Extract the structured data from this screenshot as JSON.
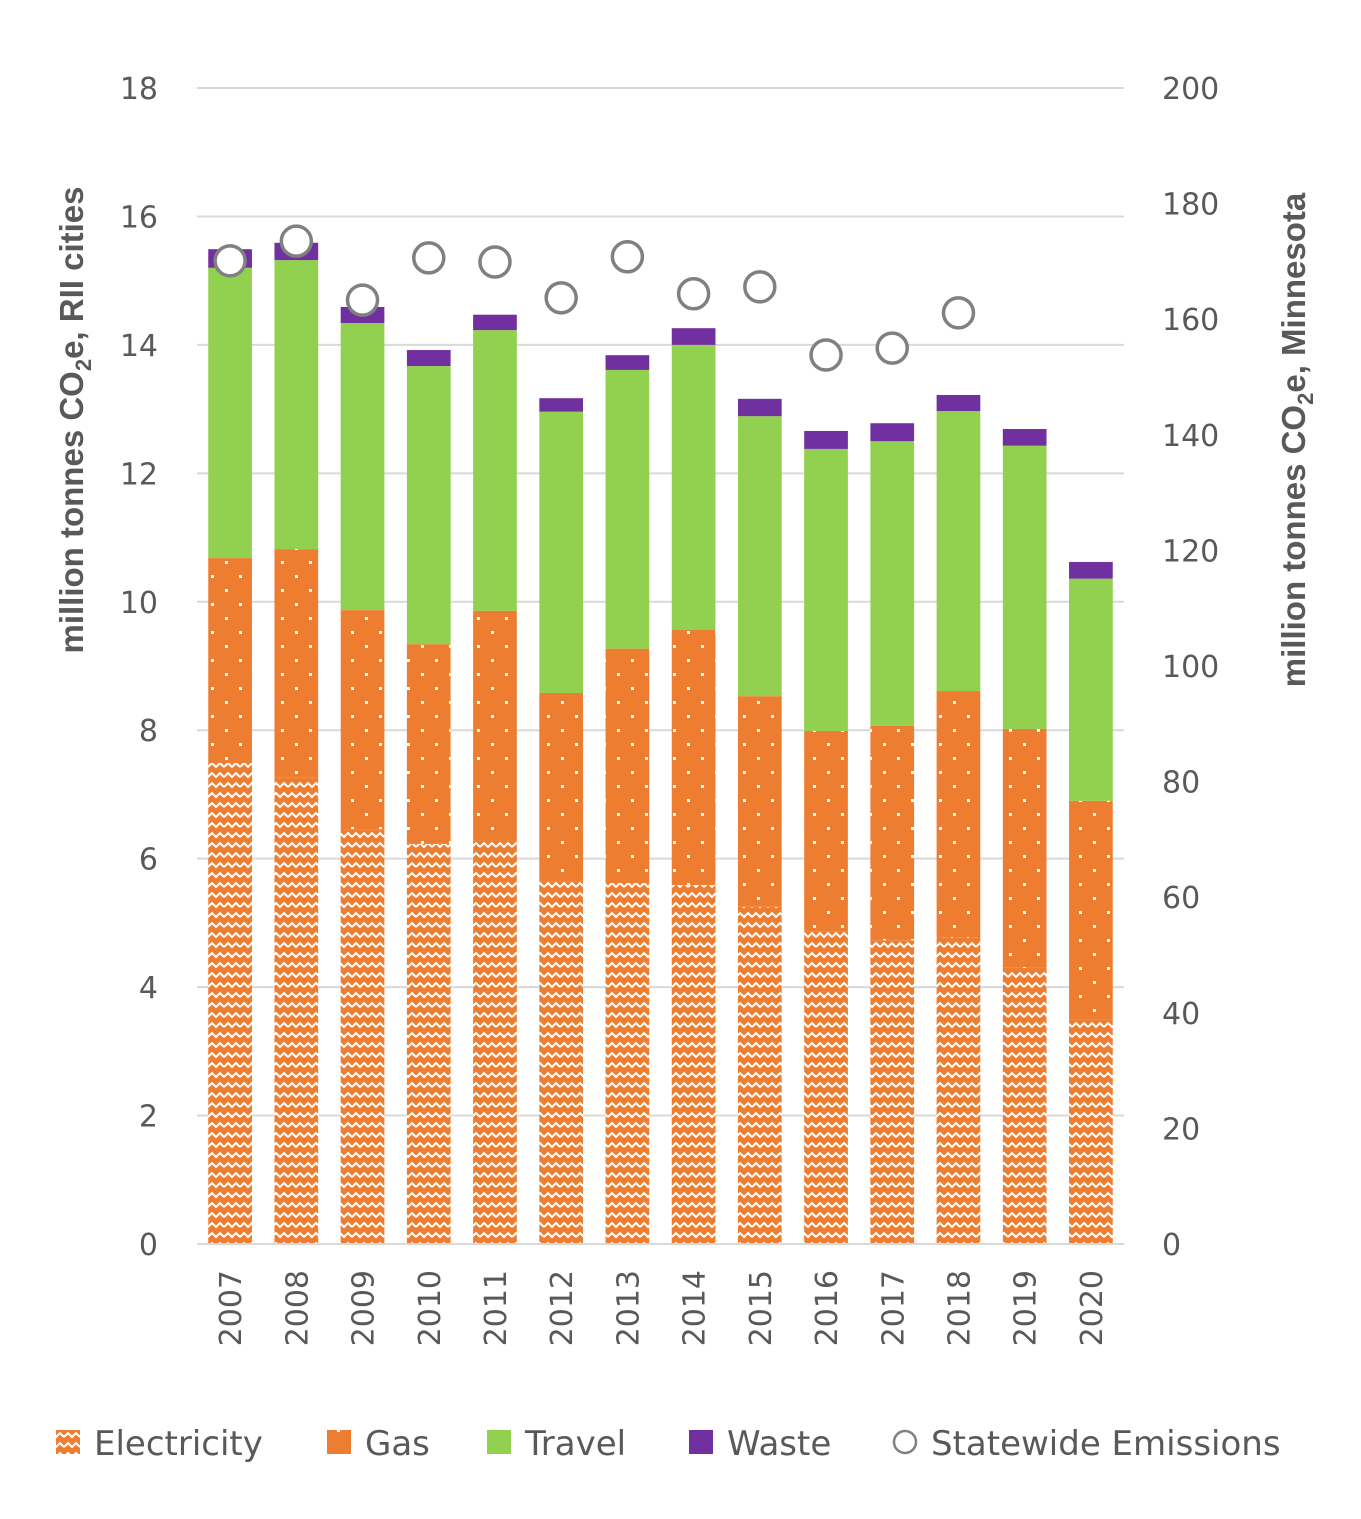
{
  "chart_data": {
    "type": "bar",
    "stacked": true,
    "title": "",
    "xlabel": "",
    "ylabel": "million tonnes CO2e, RII cities",
    "ylabel_parts": {
      "before": "million tonnes CO",
      "sub": "2",
      "after": "e, RII cities"
    },
    "y2label": "million tonnes CO2e, Minnesota",
    "y2label_parts": {
      "before": "million tonnes CO",
      "sub": "2",
      "after": "e, Minnesota"
    },
    "ylim": [
      0,
      18
    ],
    "y2lim": [
      0,
      200
    ],
    "yticks": [
      0,
      2,
      4,
      6,
      8,
      10,
      12,
      14,
      16,
      18
    ],
    "y2ticks": [
      0,
      20,
      40,
      60,
      80,
      100,
      120,
      140,
      160,
      180,
      200
    ],
    "grid": true,
    "legend_position": "bottom",
    "categories": [
      "2007",
      "2008",
      "2009",
      "2010",
      "2011",
      "2012",
      "2013",
      "2014",
      "2015",
      "2016",
      "2017",
      "2018",
      "2019",
      "2020"
    ],
    "series": [
      {
        "name": "Electricity",
        "color": "#ED7D31",
        "pattern": "wave",
        "axis": "left",
        "values": [
          7.49,
          7.26,
          6.46,
          6.23,
          6.29,
          5.64,
          5.62,
          5.59,
          5.25,
          4.86,
          4.73,
          4.78,
          4.3,
          3.49
        ]
      },
      {
        "name": "Gas",
        "color": "#ED7D31",
        "pattern": "dots",
        "axis": "left",
        "values": [
          3.19,
          3.56,
          3.41,
          3.11,
          3.57,
          2.94,
          3.65,
          3.97,
          3.28,
          3.13,
          3.34,
          3.83,
          3.72,
          3.41
        ]
      },
      {
        "name": "Travel",
        "color": "#92D050",
        "pattern": "solid",
        "axis": "left",
        "values": [
          4.52,
          4.5,
          4.47,
          4.33,
          4.37,
          4.38,
          4.34,
          4.44,
          4.36,
          4.39,
          4.43,
          4.36,
          4.41,
          3.46
        ]
      },
      {
        "name": "Waste",
        "color": "#7030A0",
        "pattern": "solid",
        "axis": "left",
        "values": [
          0.29,
          0.27,
          0.25,
          0.25,
          0.24,
          0.21,
          0.23,
          0.26,
          0.27,
          0.28,
          0.28,
          0.25,
          0.26,
          0.26
        ]
      },
      {
        "name": "Statewide Emissions",
        "type": "scatter",
        "marker": "open-circle",
        "color": "#808080",
        "axis": "right",
        "values": [
          170.1,
          173.5,
          163.3,
          170.6,
          169.9,
          163.7,
          170.8,
          164.4,
          165.6,
          153.8,
          155.0,
          161.1,
          null,
          null
        ]
      }
    ]
  }
}
